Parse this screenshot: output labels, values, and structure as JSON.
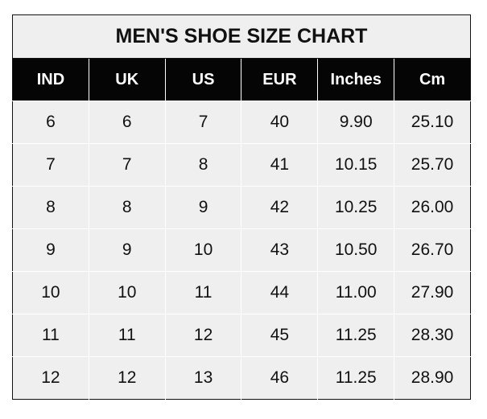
{
  "chart_data": {
    "type": "table",
    "title": "MEN'S SHOE SIZE CHART",
    "columns": [
      "IND",
      "UK",
      "US",
      "EUR",
      "Inches",
      "Cm"
    ],
    "rows": [
      [
        "6",
        "6",
        "7",
        "40",
        "9.90",
        "25.10"
      ],
      [
        "7",
        "7",
        "8",
        "41",
        "10.15",
        "25.70"
      ],
      [
        "8",
        "8",
        "9",
        "42",
        "10.25",
        "26.00"
      ],
      [
        "9",
        "9",
        "10",
        "43",
        "10.50",
        "26.70"
      ],
      [
        "10",
        "10",
        "11",
        "44",
        "11.00",
        "27.90"
      ],
      [
        "11",
        "11",
        "12",
        "45",
        "11.25",
        "28.30"
      ],
      [
        "12",
        "12",
        "13",
        "46",
        "11.25",
        "28.90"
      ]
    ],
    "colors": {
      "header_bg": "#050505",
      "header_text": "#ffffff",
      "cell_bg": "#efefef",
      "grid": "#ffffff"
    }
  }
}
